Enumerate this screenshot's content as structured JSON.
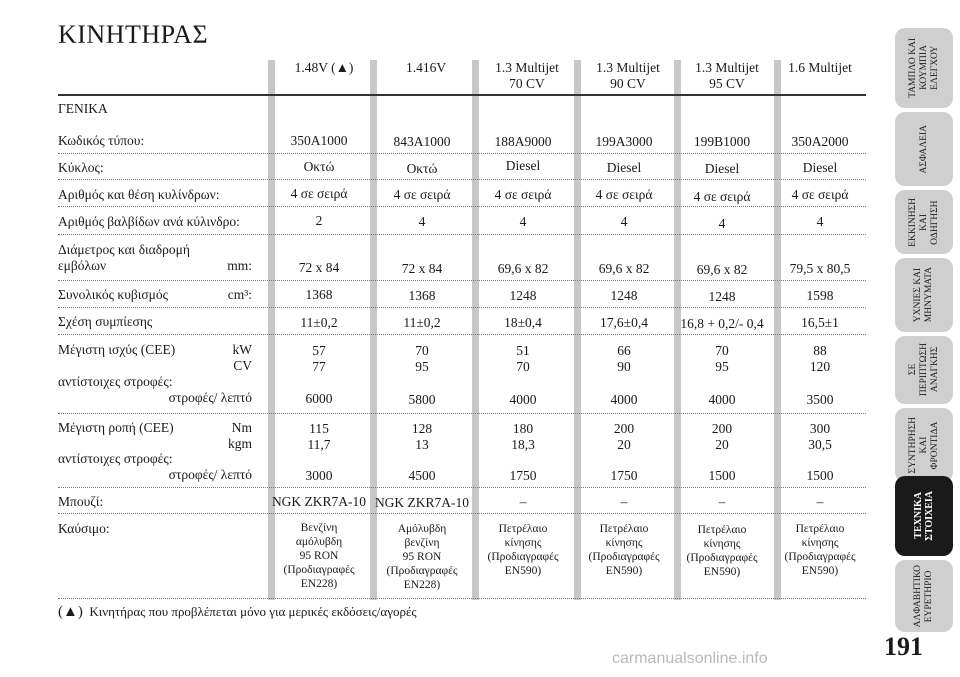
{
  "title": "ΚΙΝΗΤΗΡΑΣ",
  "columns": [
    {
      "line1": "1.48V (▲)",
      "line2": ""
    },
    {
      "line1": "1.416V",
      "line2": ""
    },
    {
      "line1": "1.3 Multijet",
      "line2": "70 CV"
    },
    {
      "line1": "1.3 Multijet",
      "line2": "90 CV"
    },
    {
      "line1": "1.3 Multijet",
      "line2": "95 CV"
    },
    {
      "line1": "1.6 Multijet",
      "line2": ""
    }
  ],
  "section_label": "ΓΕΝΙΚΑ",
  "rows": {
    "engine_code": {
      "label": "Κωδικός τύπου:",
      "values": [
        "350A1000",
        "843A1000",
        "188A9000",
        "199A3000",
        "199B1000",
        "350A2000"
      ]
    },
    "cycle": {
      "label": "Κύκλος:",
      "values": [
        "Οκτώ",
        "Οκτώ",
        "Diesel",
        "Diesel",
        "Diesel",
        "Diesel"
      ]
    },
    "cylinders": {
      "label": "Αριθμός και θέση κυλίνδρων:",
      "values": [
        "4 σε σειρά",
        "4 σε σειρά",
        "4 σε σειρά",
        "4 σε σειρά",
        "4 σε σειρά",
        "4 σε σειρά"
      ]
    },
    "valves": {
      "label": "Αριθμός βαλβίδων ανά κύλινδρο:",
      "values": [
        "2",
        "4",
        "4",
        "4",
        "4",
        "4"
      ]
    },
    "bore_stroke": {
      "label1": "Διάμετρος και διαδρομή",
      "label2": "εμβόλων",
      "unit": "mm:",
      "values": [
        "72 x 84",
        "72 x 84",
        "69,6 x 82",
        "69,6 x 82",
        "69,6 x 82",
        "79,5 x 80,5"
      ]
    },
    "displacement": {
      "label": "Συνολικός κυβισμός",
      "unit": "cm³:",
      "values": [
        "1368",
        "1368",
        "1248",
        "1248",
        "1248",
        "1598"
      ]
    },
    "compression": {
      "label": "Σχέση συμπίεσης",
      "values": [
        "11±0,2",
        "11±0,2",
        "18±0,4",
        "17,6±0,4",
        "16,8 + 0,2/- 0,4",
        "16,5±1"
      ]
    },
    "max_power": {
      "label": "Μέγιστη ισχύς (CEE)",
      "unit1": "kW",
      "unit2": "CV",
      "label2": "αντίστοιχες στροφές:",
      "label3": "στροφές/ λεπτό",
      "kw": [
        "57",
        "70",
        "51",
        "66",
        "70",
        "88"
      ],
      "cv": [
        "77",
        "95",
        "70",
        "90",
        "95",
        "120"
      ],
      "rpm": [
        "6000",
        "5800",
        "4000",
        "4000",
        "4000",
        "3500"
      ]
    },
    "max_torque": {
      "label": "Μέγιστη ροπή  (CEE)",
      "unit1": "Nm",
      "unit2": "kgm",
      "label2": "αντίστοιχες στροφές:",
      "label3": "στροφές/ λεπτό",
      "nm": [
        "115",
        "128",
        "180",
        "200",
        "200",
        "300"
      ],
      "kgm": [
        "11,7",
        "13",
        "18,3",
        "20",
        "20",
        "30,5"
      ],
      "rpm": [
        "3000",
        "4500",
        "1750",
        "1750",
        "1500",
        "1500"
      ]
    },
    "spark_plug": {
      "label": "Μπουζί:",
      "values": [
        "NGK ZKR7A-10",
        "NGK ZKR7A-10",
        "–",
        "–",
        "–",
        "–"
      ]
    },
    "fuel": {
      "label": "Καύσιμο:",
      "values": [
        [
          "Βενζίνη",
          "αμόλυβδη",
          "95 RON",
          "(Προδιαγραφές",
          "EN228)"
        ],
        [
          "Αμόλυβδη",
          "βενζίνη",
          "95 RON",
          "(Προδιαγραφές",
          "EN228)"
        ],
        [
          "Πετρέλαιο",
          "κίνησης",
          "(Προδιαγραφές",
          "EN590)",
          ""
        ],
        [
          "Πετρέλαιο",
          "κίνησης",
          "(Προδιαγραφές",
          "EN590)",
          ""
        ],
        [
          "Πετρέλαιο",
          "κίνησης",
          "(Προδιαγραφές",
          "EN590)",
          ""
        ],
        [
          "Πετρέλαιο",
          "κίνησης",
          "(Προδιαγραφές",
          "EN590)",
          ""
        ]
      ]
    }
  },
  "footnote": {
    "symbol": "(▲)",
    "text": "Κινητήρας που προβλέπεται μόνο για μερικές εκδόσεις/αγορές"
  },
  "sidebar_tabs": [
    {
      "label": "ΤΑΜΠΛΟ ΚΑΙ\nΚΟΥΜΠΙΑ\nΕΛΕΓΧΟΥ",
      "active": false
    },
    {
      "label": "ΑΣΦΑΛΕΙΑ",
      "active": false
    },
    {
      "label": "ΕΚΚΙΝΗΣΗ\nΚΑΙ\nΟΔΗΓΗΣΗ",
      "active": false
    },
    {
      "label": "ΥΧΝΙΕΣ ΚΑΙ\nΜΗΝΥΜΑΤΑ",
      "active": false
    },
    {
      "label": "ΣΕ\nΠΕΡΙΠΤΩΣΗ\nΑΝΑΓΚΗΣ",
      "active": false
    },
    {
      "label": "ΣΥΝΤΗΡΗΣΗ\nΚΑΙ\nΦΡΟΝΤΙΔΑ",
      "active": false
    },
    {
      "label": "ΤΕΧΝΙΚΑ\nΣΤΟΙΧΕΙΑ",
      "active": true
    },
    {
      "label": "ΑΛΦΑΒΗΤΙΚΟ\nΕΥΡΕΤΗΡΙΟ",
      "active": false
    }
  ],
  "page_number": "191",
  "watermark": "carmanualsonline.info"
}
